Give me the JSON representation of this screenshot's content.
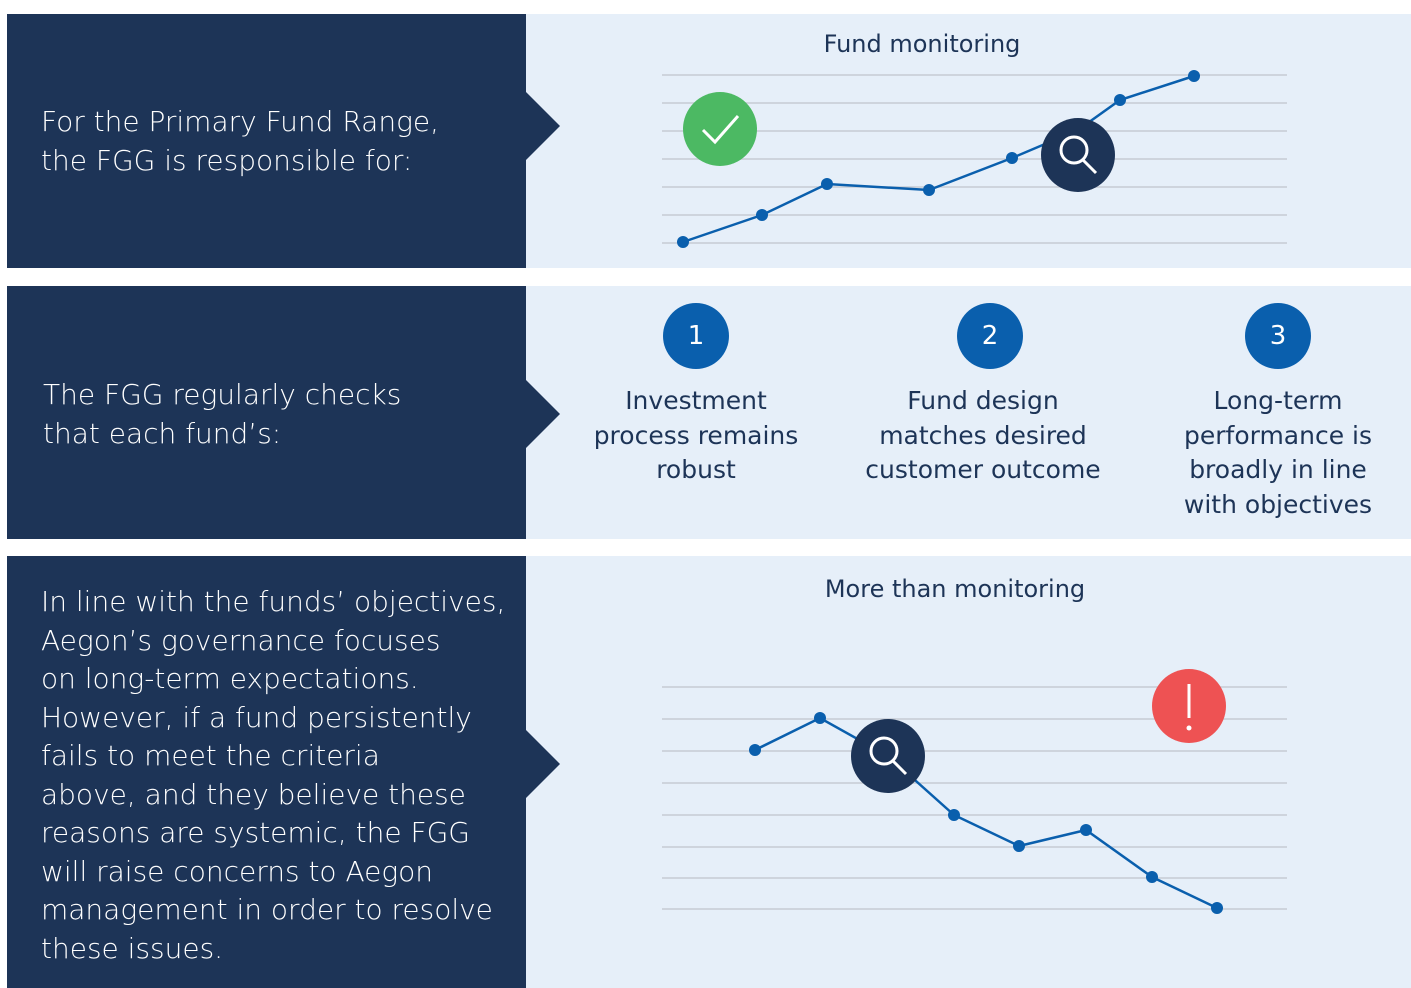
{
  "rows": [
    {
      "left": [
        "For the Primary Fund Range,",
        "the FGG is responsible for:"
      ],
      "title": "Fund monitoring"
    },
    {
      "left": [
        "The FGG regularly checks",
        "that each fund’s:"
      ],
      "items": [
        {
          "number": "1",
          "label": [
            "Investment",
            "process remains",
            "robust"
          ]
        },
        {
          "number": "2",
          "label": [
            "Fund design",
            "matches desired",
            "customer outcome"
          ]
        },
        {
          "number": "3",
          "label": [
            "Long-term",
            "performance is",
            "broadly in line",
            "with objectives"
          ]
        }
      ]
    },
    {
      "left": [
        "In line with the funds’ objectives,",
        "Aegon’s governance focuses",
        "on long-term expectations.",
        "However, if a fund persistently",
        "fails to meet the criteria",
        "above, and they believe these",
        "reasons are systemic, the FGG",
        "will raise concerns to Aegon",
        "management in order to resolve",
        "these issues."
      ],
      "title": "More than monitoring"
    }
  ]
}
